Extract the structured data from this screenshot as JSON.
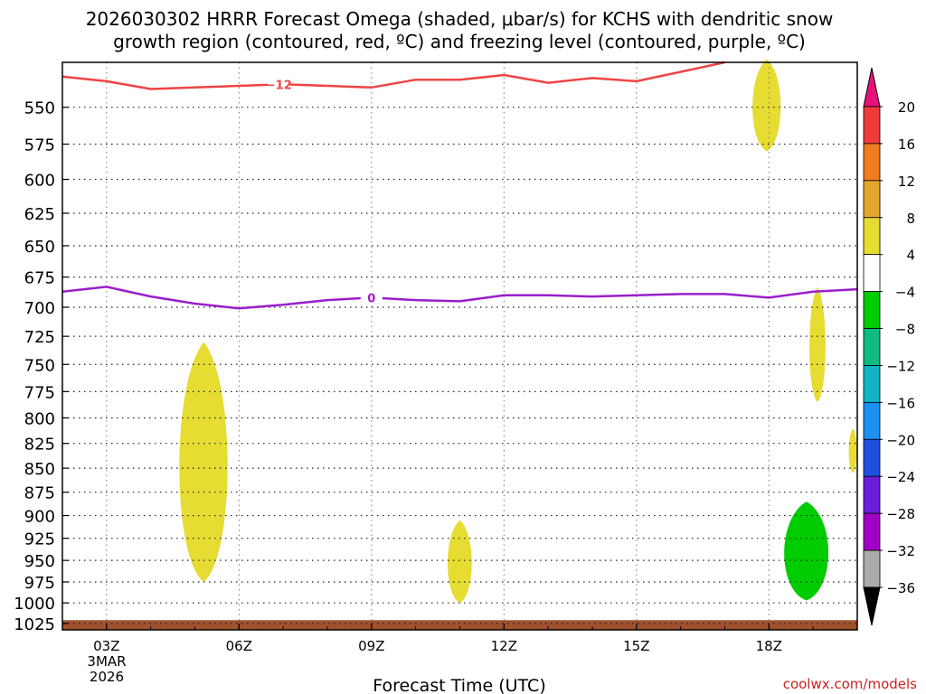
{
  "chart_data": {
    "type": "heatmap",
    "title_line1": "2026030302 HRRR Forecast Omega (shaded, μbar/s) for KCHS with dendritic snow",
    "title_line2": "growth region (contoured, red, ºC) and freezing level (contoured, purple, ºC)",
    "xlabel": "Forecast Time (UTC)",
    "x_ticks": [
      "03Z",
      "06Z",
      "09Z",
      "12Z",
      "15Z",
      "18Z"
    ],
    "x_tick_hours": [
      3,
      6,
      9,
      12,
      15,
      18
    ],
    "x_date_line1": "3MAR",
    "x_date_line2": "2026",
    "xlim_hours": [
      2,
      20
    ],
    "y_ticks": [
      550,
      575,
      600,
      625,
      650,
      675,
      700,
      725,
      750,
      775,
      800,
      825,
      850,
      875,
      900,
      925,
      950,
      975,
      1000,
      1025
    ],
    "ylim_hpa": [
      521,
      1033
    ],
    "y_scale": "log-pressure",
    "colorbar": {
      "labels": [
        "20",
        "16",
        "12",
        "8",
        "4",
        "−4",
        "−8",
        "−12",
        "−16",
        "−20",
        "−24",
        "−28",
        "−32",
        "−36"
      ],
      "colors": [
        "#f03a3a",
        "#f07c1e",
        "#e3a62d",
        "#e6dc32",
        "#ffffff",
        "#00cc00",
        "#10bb80",
        "#10b4c4",
        "#1e90f0",
        "#1e50e0",
        "#6a1eda",
        "#a000c8",
        "#aaaaaa"
      ],
      "top_arrow_color": "#e8107a",
      "bottom_arrow_color": "#000000"
    },
    "series": [
      {
        "name": "-12 ºC isotherm (dendritic growth)",
        "label": "−12",
        "color": "#ef4444",
        "x": [
          2,
          3,
          4,
          5,
          6,
          7,
          8,
          9,
          10,
          11,
          12,
          13,
          14,
          15,
          16,
          17
        ],
        "y": [
          530,
          533,
          538,
          537,
          536,
          535,
          536,
          537,
          532,
          532,
          529,
          534,
          531,
          533,
          527,
          519
        ]
      },
      {
        "name": "0 ºC freezing level",
        "label": "0",
        "color": "#9a1ecc",
        "x": [
          2,
          3,
          4,
          5,
          6,
          7,
          8,
          9,
          10,
          11,
          12,
          13,
          14,
          15,
          16,
          17,
          18,
          19,
          20
        ],
        "y": [
          687,
          683,
          691,
          697,
          701,
          698,
          694,
          692,
          694,
          695,
          690,
          690,
          691,
          690,
          689,
          689,
          692,
          687,
          685
        ]
      }
    ],
    "shaded_regions": [
      {
        "color": "#e6dc32",
        "value_range": [
          4,
          8
        ],
        "hours": [
          4.6,
          5.8
        ],
        "hpa": [
          730,
          975
        ]
      },
      {
        "color": "#e6dc32",
        "value_range": [
          4,
          8
        ],
        "hours": [
          10.7,
          11.3
        ],
        "hpa": [
          905,
          1000
        ]
      },
      {
        "color": "#e6dc32",
        "value_range": [
          4,
          8
        ],
        "hours": [
          17.6,
          18.3
        ],
        "hpa": [
          519,
          580
        ]
      },
      {
        "color": "#e6dc32",
        "value_range": [
          4,
          8
        ],
        "hours": [
          18.9,
          19.3
        ],
        "hpa": [
          683,
          785
        ]
      },
      {
        "color": "#e6dc32",
        "value_range": [
          4,
          8
        ],
        "hours": [
          19.8,
          20
        ],
        "hpa": [
          810,
          855
        ]
      },
      {
        "color": "#00cc00",
        "value_range": [
          -8,
          -4
        ],
        "hours": [
          18.3,
          19.4
        ],
        "hpa": [
          885,
          997
        ]
      }
    ],
    "surface_band": {
      "color": "#a0522d",
      "hpa_top": 1021
    }
  },
  "footer": {
    "credit": "coolwx.com/models"
  }
}
